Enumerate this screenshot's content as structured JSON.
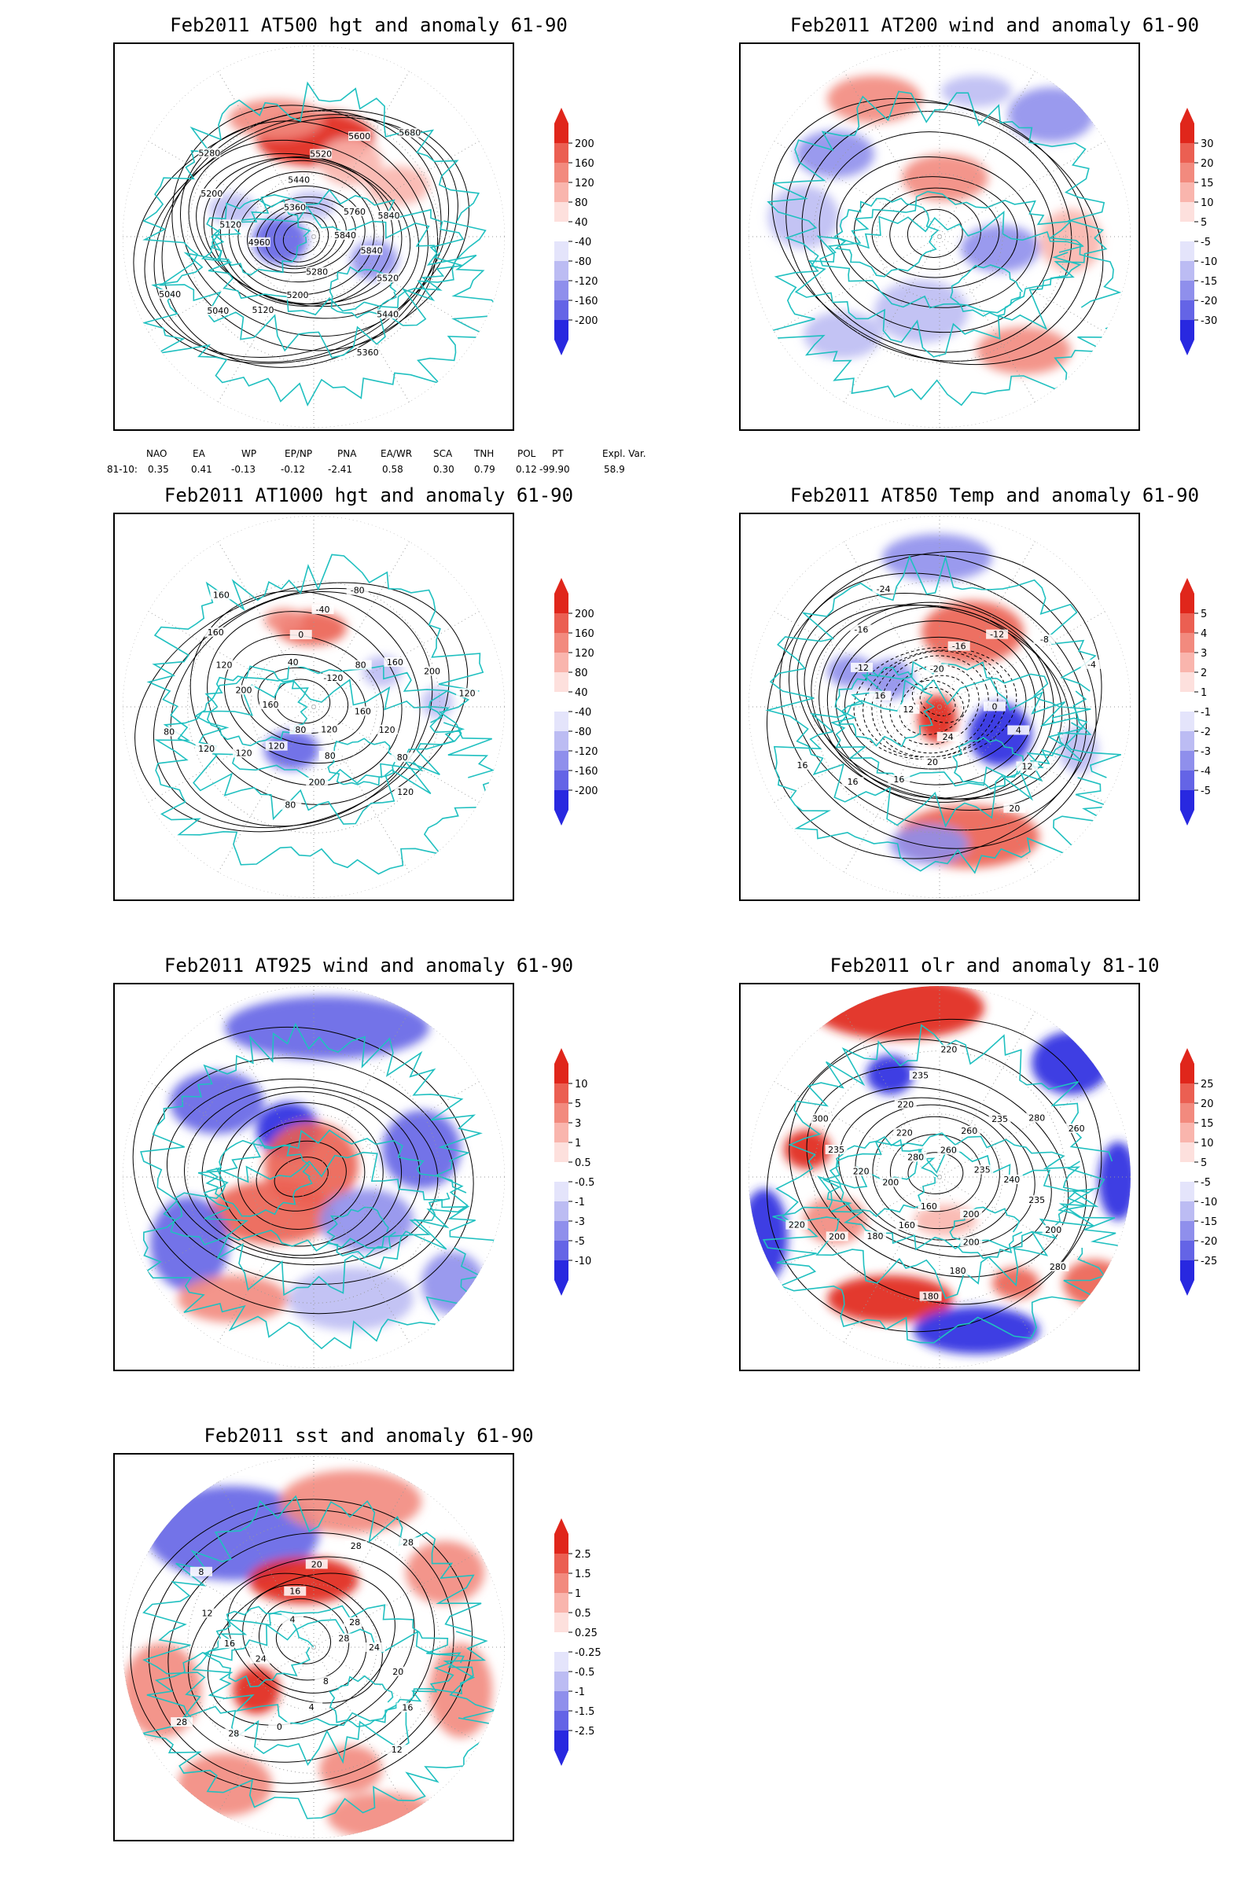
{
  "colors": {
    "coast": "#20c0c0",
    "contour": "#000000",
    "pos": [
      "#fde0dd",
      "#f9b5ad",
      "#f28a7e",
      "#eb5f52",
      "#e0261b"
    ],
    "neg": [
      "#e4e4fb",
      "#bcbcf3",
      "#8f8fec",
      "#6464e6",
      "#2828e0"
    ]
  },
  "panels": [
    {
      "id": "at500",
      "title": "Feb2011 AT500 hgt and anomaly 61-90",
      "colorbar": [
        "200",
        "160",
        "120",
        "80",
        "40",
        "-40",
        "-80",
        "-120",
        "-160",
        "-200"
      ],
      "contour_labels": [
        "5840",
        "5840",
        "5520",
        "5440",
        "5360",
        "5280",
        "5200",
        "5120",
        "5040",
        "5040",
        "4960",
        "5120",
        "5200",
        "5280",
        "5360",
        "5440",
        "5520",
        "5600",
        "5680",
        "5760",
        "5840"
      ],
      "indices": {
        "headers": [
          "NAO",
          "EA",
          "WP",
          "EP/NP",
          "PNA",
          "EA/WR",
          "SCA",
          "TNH",
          "POL",
          "PT",
          "Expl. Var."
        ],
        "row_label": "81-10:",
        "values": [
          "0.35",
          "0.41",
          "-0.13",
          "-0.12",
          "-2.41",
          "0.58",
          "0.30",
          "0.79",
          "0.12",
          "-99.90",
          "58.9"
        ]
      }
    },
    {
      "id": "at200",
      "title": "Feb2011 AT200 wind and anomaly 61-90",
      "colorbar": [
        "30",
        "20",
        "15",
        "10",
        "5",
        "-5",
        "-10",
        "-15",
        "-20",
        "-30"
      ],
      "contour_labels": []
    },
    {
      "id": "at1000",
      "title": "Feb2011 AT1000 hgt and anomaly 61-90",
      "colorbar": [
        "200",
        "160",
        "120",
        "80",
        "40",
        "-40",
        "-80",
        "-120",
        "-160",
        "-200"
      ],
      "contour_labels": [
        "80",
        "120",
        "120",
        "120",
        "80",
        "160",
        "200",
        "120",
        "160",
        "160",
        "40",
        "0",
        "-40",
        "-80",
        "-120",
        "80",
        "160",
        "200",
        "120",
        "160",
        "120",
        "80",
        "120",
        "120",
        "80",
        "200",
        "80"
      ]
    },
    {
      "id": "at850",
      "title": "Feb2011 AT850 Temp and anomaly 61-90",
      "colorbar": [
        "5",
        "4",
        "3",
        "2",
        "1",
        "-1",
        "-2",
        "-3",
        "-4",
        "-5"
      ],
      "contour_labels": [
        "12",
        "16",
        "-12",
        "-16",
        "-24",
        "-20",
        "-16",
        "-12",
        "-8",
        "-4",
        "0",
        "4",
        "12",
        "20",
        "24",
        "20",
        "16",
        "16",
        "16"
      ]
    },
    {
      "id": "at925",
      "title": "Feb2011 AT925 wind and anomaly 61-90",
      "colorbar": [
        "10",
        "5",
        "3",
        "1",
        "0.5",
        "-0.5",
        "-1",
        "-3",
        "-5",
        "-10"
      ],
      "contour_labels": []
    },
    {
      "id": "olr",
      "title": "Feb2011 olr and anomaly 81-10",
      "colorbar": [
        "25",
        "20",
        "15",
        "10",
        "5",
        "-5",
        "-10",
        "-15",
        "-20",
        "-25"
      ],
      "contour_labels": [
        "260",
        "260",
        "235",
        "280",
        "260",
        "235",
        "240",
        "235",
        "200",
        "280",
        "200",
        "200",
        "180",
        "180",
        "160",
        "160",
        "180",
        "200",
        "220",
        "200",
        "220",
        "235",
        "300",
        "280",
        "220",
        "220",
        "235",
        "220"
      ]
    },
    {
      "id": "sst",
      "title": "Feb2011 sst and anomaly 61-90",
      "colorbar": [
        "2.5",
        "1.5",
        "1",
        "0.5",
        "0.25",
        "-0.25",
        "-0.5",
        "-1",
        "-1.5",
        "-2.5"
      ],
      "contour_labels": [
        "28",
        "24",
        "20",
        "16",
        "12",
        "8",
        "4",
        "0",
        "28",
        "28",
        "24",
        "16",
        "12",
        "8",
        "4",
        "16",
        "20",
        "28",
        "28",
        "28"
      ]
    }
  ]
}
